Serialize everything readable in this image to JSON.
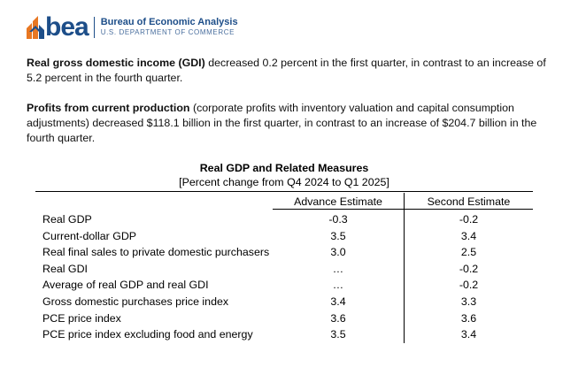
{
  "header": {
    "logo_word": "bea",
    "org_name": "Bureau of Economic Analysis",
    "org_dept": "U.S. DEPARTMENT OF COMMERCE"
  },
  "paragraphs": [
    {
      "bold": "Real gross domestic income (GDI)",
      "text": " decreased 0.2 percent in the first quarter, in contrast to an increase of 5.2 percent in the fourth quarter."
    },
    {
      "bold": "Profits from current production",
      "text": " (corporate profits with inventory valuation and capital consumption adjustments) decreased $118.1 billion in the first quarter, in contrast to an increase of $204.7 billion in the fourth quarter."
    }
  ],
  "table": {
    "title": "Real GDP and Related Measures",
    "subtitle": "[Percent change from Q4 2024 to Q1 2025]",
    "columns": [
      "Advance Estimate",
      "Second Estimate"
    ],
    "rows": [
      {
        "label": "Real GDP",
        "advance": "-0.3",
        "second": "-0.2"
      },
      {
        "label": "Current-dollar GDP",
        "advance": "3.5",
        "second": "3.4"
      },
      {
        "label": "Real final sales to private domestic purchasers",
        "advance": "3.0",
        "second": "2.5"
      },
      {
        "label": "Real GDI",
        "advance": "…",
        "second": "-0.2"
      },
      {
        "label": "Average of real GDP and real GDI",
        "advance": "…",
        "second": "-0.2"
      },
      {
        "label": "Gross domestic purchases price index",
        "advance": "3.4",
        "second": "3.3"
      },
      {
        "label": "PCE price index",
        "advance": "3.6",
        "second": "3.6"
      },
      {
        "label": "PCE price index excluding food and energy",
        "advance": "3.5",
        "second": "3.4"
      }
    ]
  },
  "colors": {
    "brand_blue": "#1d4e89",
    "brand_orange": "#e87722"
  }
}
